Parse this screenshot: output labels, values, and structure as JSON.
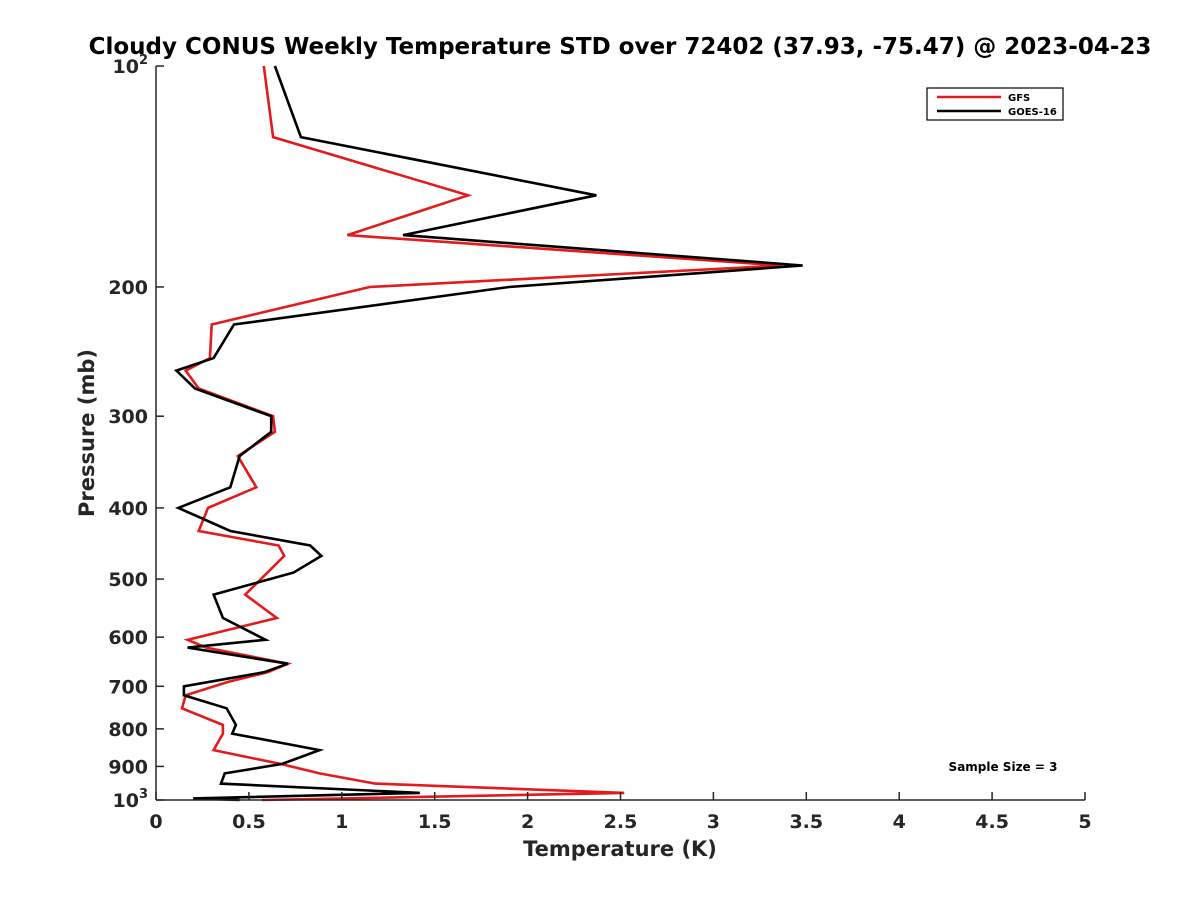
{
  "chart_data": {
    "type": "line",
    "title": "Cloudy CONUS Weekly Temperature STD over 72402 (37.93, -75.47) @ 2023-04-23",
    "xlabel": "Temperature (K)",
    "ylabel": "Pressure (mb)",
    "xlim": [
      0,
      5
    ],
    "ylim": [
      100,
      1000
    ],
    "y_scale": "log",
    "y_reversed": true,
    "x_ticks": [
      0,
      0.5,
      1,
      1.5,
      2,
      2.5,
      3,
      3.5,
      4,
      4.5,
      5
    ],
    "x_tick_labels": [
      "0",
      "0.5",
      "1",
      "1.5",
      "2",
      "2.5",
      "3",
      "3.5",
      "4",
      "4.5",
      "5"
    ],
    "y_ticks": [
      {
        "value": 100,
        "base": "10",
        "exp": "2"
      },
      {
        "value": 200,
        "label": "200"
      },
      {
        "value": 300,
        "label": "300"
      },
      {
        "value": 400,
        "label": "400"
      },
      {
        "value": 500,
        "label": "500"
      },
      {
        "value": 600,
        "label": "600"
      },
      {
        "value": 700,
        "label": "700"
      },
      {
        "value": 800,
        "label": "800"
      },
      {
        "value": 900,
        "label": "900"
      },
      {
        "value": 1000,
        "base": "10",
        "exp": "3"
      }
    ],
    "legend_position": "top-right",
    "annotation": "Sample Size = 3",
    "series": [
      {
        "name": "GFS",
        "color": "#e41a1c",
        "points": [
          [
            0.58,
            100
          ],
          [
            0.63,
            125
          ],
          [
            1.68,
            150
          ],
          [
            1.03,
            170
          ],
          [
            3.37,
            187
          ],
          [
            1.15,
            200
          ],
          [
            0.3,
            225
          ],
          [
            0.29,
            250
          ],
          [
            0.16,
            260
          ],
          [
            0.23,
            275
          ],
          [
            0.63,
            300
          ],
          [
            0.64,
            315
          ],
          [
            0.44,
            340
          ],
          [
            0.54,
            375
          ],
          [
            0.28,
            400
          ],
          [
            0.23,
            430
          ],
          [
            0.66,
            450
          ],
          [
            0.69,
            465
          ],
          [
            0.6,
            490
          ],
          [
            0.48,
            525
          ],
          [
            0.65,
            565
          ],
          [
            0.17,
            605
          ],
          [
            0.27,
            620
          ],
          [
            0.71,
            652
          ],
          [
            0.6,
            670
          ],
          [
            0.39,
            690
          ],
          [
            0.16,
            720
          ],
          [
            0.14,
            750
          ],
          [
            0.36,
            790
          ],
          [
            0.36,
            812
          ],
          [
            0.31,
            855
          ],
          [
            0.67,
            893
          ],
          [
            0.88,
            920
          ],
          [
            1.18,
            950
          ],
          [
            2.52,
            978
          ],
          [
            0.57,
            1000
          ]
        ]
      },
      {
        "name": "GOES-16",
        "color": "#000000",
        "points": [
          [
            0.64,
            100
          ],
          [
            0.78,
            125
          ],
          [
            2.37,
            150
          ],
          [
            1.33,
            170
          ],
          [
            3.48,
            187
          ],
          [
            1.9,
            200
          ],
          [
            0.42,
            225
          ],
          [
            0.31,
            250
          ],
          [
            0.11,
            260
          ],
          [
            0.21,
            275
          ],
          [
            0.62,
            300
          ],
          [
            0.62,
            315
          ],
          [
            0.45,
            340
          ],
          [
            0.4,
            375
          ],
          [
            0.12,
            400
          ],
          [
            0.4,
            430
          ],
          [
            0.83,
            450
          ],
          [
            0.89,
            465
          ],
          [
            0.74,
            490
          ],
          [
            0.31,
            525
          ],
          [
            0.36,
            565
          ],
          [
            0.59,
            605
          ],
          [
            0.17,
            620
          ],
          [
            0.71,
            652
          ],
          [
            0.58,
            670
          ],
          [
            0.15,
            700
          ],
          [
            0.15,
            720
          ],
          [
            0.38,
            750
          ],
          [
            0.43,
            790
          ],
          [
            0.41,
            812
          ],
          [
            0.88,
            855
          ],
          [
            0.68,
            893
          ],
          [
            0.37,
            920
          ],
          [
            0.35,
            950
          ],
          [
            1.42,
            978
          ],
          [
            0.2,
            995
          ],
          [
            0.45,
            1000
          ]
        ]
      }
    ]
  }
}
